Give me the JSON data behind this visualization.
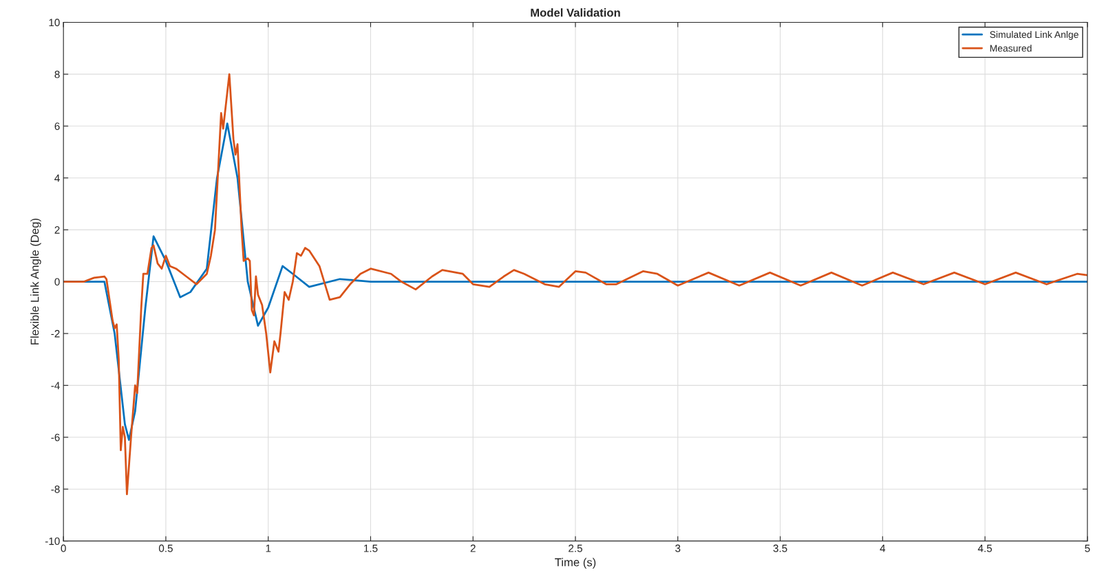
{
  "chart_data": {
    "type": "line",
    "title": "Model Validation",
    "xlabel": "Time (s)",
    "ylabel": "Flexible Link Angle (Deg)",
    "xlim": [
      0,
      5
    ],
    "xticks": [
      0,
      0.5,
      1,
      1.5,
      2,
      2.5,
      3,
      3.5,
      4,
      4.5,
      5
    ],
    "ylim": [
      -10,
      10
    ],
    "yticks": [
      -10,
      -8,
      -6,
      -4,
      -2,
      0,
      2,
      4,
      6,
      8,
      10
    ],
    "grid": true,
    "legend": "top right",
    "marker": "none",
    "line_style": "solid",
    "series": [
      {
        "name": "Simulated Link Anlge",
        "color": "#0072bd",
        "x": [
          0,
          0.2,
          0.25,
          0.3,
          0.32,
          0.35,
          0.4,
          0.44,
          0.5,
          0.57,
          0.62,
          0.7,
          0.75,
          0.8,
          0.85,
          0.9,
          0.95,
          1.0,
          1.07,
          1.12,
          1.2,
          1.35,
          1.5,
          5
        ],
        "values": [
          0,
          0,
          -2,
          -5.5,
          -6.1,
          -5,
          -1,
          1.75,
          0.8,
          -0.6,
          -0.4,
          0.5,
          4,
          6.1,
          4,
          0,
          -1.7,
          -1,
          0.6,
          0.3,
          -0.2,
          0.1,
          0,
          0
        ]
      },
      {
        "name": "Measured",
        "color": "#d95319",
        "x": [
          0,
          0.1,
          0.15,
          0.2,
          0.21,
          0.24,
          0.25,
          0.26,
          0.27,
          0.28,
          0.29,
          0.3,
          0.31,
          0.33,
          0.35,
          0.36,
          0.38,
          0.39,
          0.41,
          0.43,
          0.44,
          0.46,
          0.48,
          0.5,
          0.52,
          0.55,
          0.6,
          0.65,
          0.7,
          0.72,
          0.74,
          0.76,
          0.77,
          0.78,
          0.81,
          0.83,
          0.84,
          0.85,
          0.87,
          0.88,
          0.9,
          0.91,
          0.92,
          0.93,
          0.94,
          0.95,
          0.97,
          0.99,
          1.01,
          1.03,
          1.05,
          1.06,
          1.08,
          1.1,
          1.12,
          1.14,
          1.16,
          1.18,
          1.2,
          1.25,
          1.3,
          1.35,
          1.4,
          1.45,
          1.5,
          1.6,
          1.65,
          1.72,
          1.8,
          1.85,
          1.95,
          2.0,
          2.08,
          2.15,
          2.2,
          2.25,
          2.35,
          2.42,
          2.5,
          2.55,
          2.65,
          2.7,
          2.83,
          2.9,
          3.0,
          3.15,
          3.3,
          3.45,
          3.6,
          3.75,
          3.9,
          4.05,
          4.2,
          4.35,
          4.5,
          4.65,
          4.8,
          4.95,
          5.0
        ],
        "values": [
          0,
          0,
          0.15,
          0.2,
          0.1,
          -1.5,
          -1.8,
          -1.65,
          -3,
          -6.5,
          -5.6,
          -6,
          -8.2,
          -6,
          -4,
          -4.3,
          -1,
          0.3,
          0.3,
          1.3,
          1.4,
          0.7,
          0.5,
          1.0,
          0.6,
          0.5,
          0.2,
          -0.1,
          0.3,
          1,
          2,
          5,
          6.5,
          5.9,
          8.0,
          5.5,
          4.9,
          5.3,
          2,
          0.8,
          0.9,
          0.8,
          -1.1,
          -1.3,
          0.2,
          -0.5,
          -0.9,
          -2.0,
          -3.5,
          -2.3,
          -2.7,
          -2.0,
          -0.4,
          -0.7,
          0.0,
          1.1,
          1.0,
          1.3,
          1.2,
          0.6,
          -0.7,
          -0.6,
          -0.1,
          0.3,
          0.5,
          0.3,
          0.0,
          -0.3,
          0.2,
          0.45,
          0.3,
          -0.1,
          -0.2,
          0.2,
          0.45,
          0.3,
          -0.1,
          -0.2,
          0.4,
          0.35,
          -0.1,
          -0.1,
          0.4,
          0.3,
          -0.15,
          0.35,
          -0.15,
          0.35,
          -0.15,
          0.35,
          -0.15,
          0.35,
          -0.1,
          0.35,
          -0.1,
          0.35,
          -0.1,
          0.3,
          0.25
        ]
      }
    ]
  }
}
